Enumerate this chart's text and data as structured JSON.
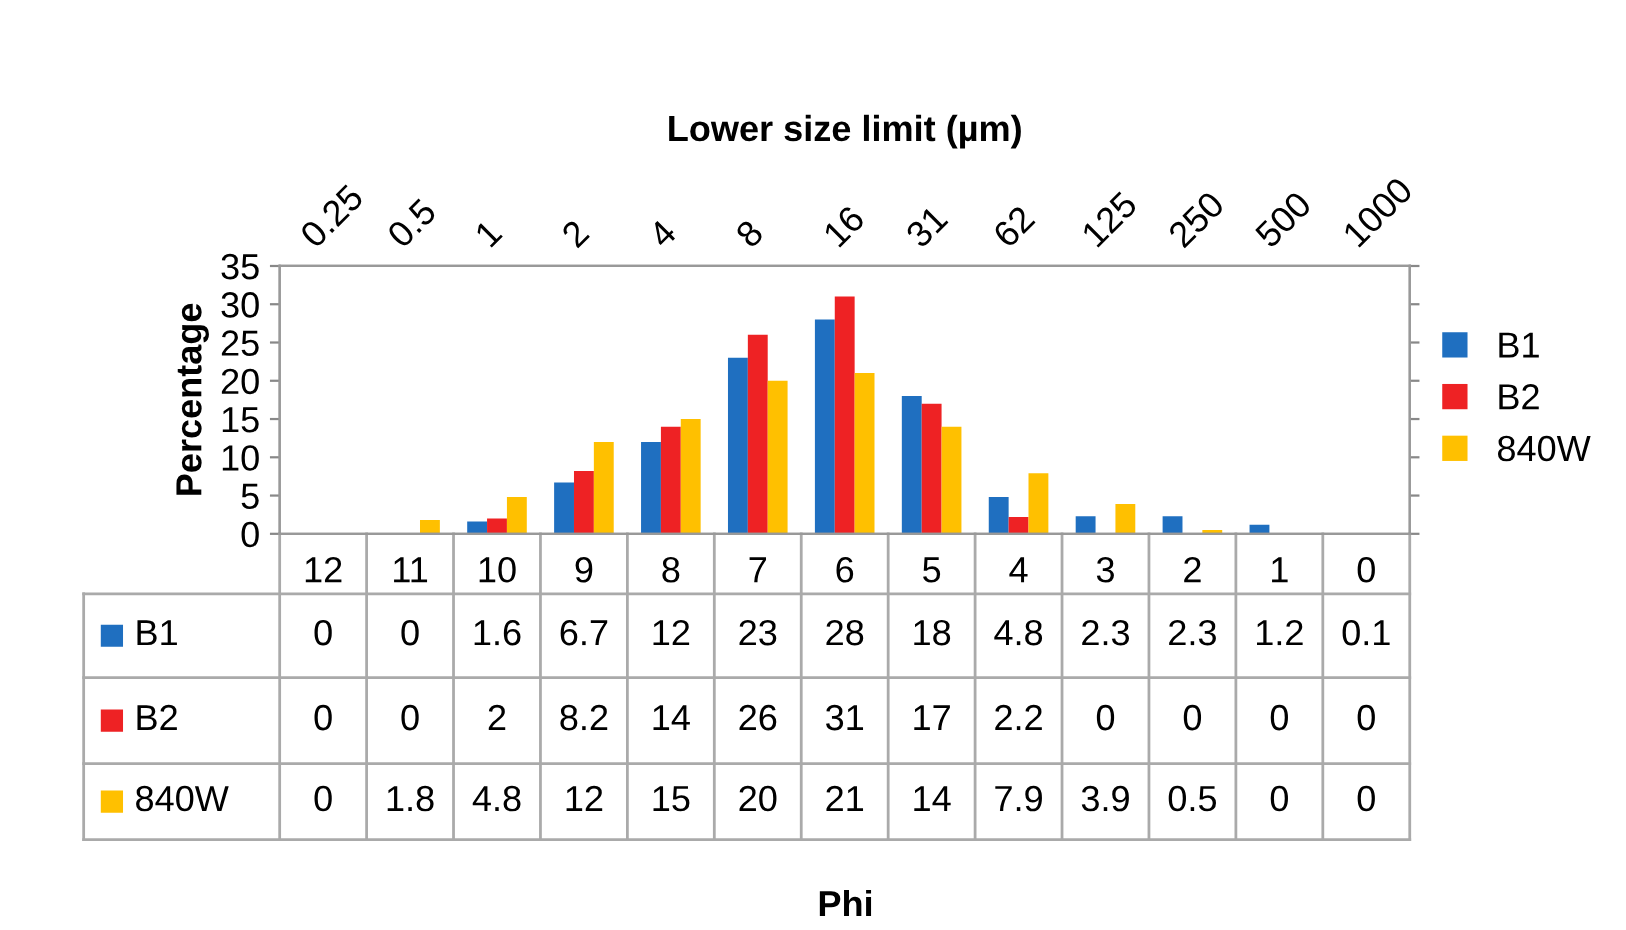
{
  "chart_data": {
    "type": "bar",
    "annotations": [
      "Phi"
    ],
    "ylabel": "Percentage",
    "x2label": "Lower size limit (µm)",
    "categories": [
      "12",
      "11",
      "10",
      "9",
      "8",
      "7",
      "6",
      "5",
      "4",
      "3",
      "2",
      "1",
      "0"
    ],
    "x2lim": [
      0.18,
      1450
    ],
    "log": "x2",
    "x2ticks": [
      0.25,
      0.5,
      1,
      2,
      4,
      8,
      16,
      31,
      62,
      125,
      250,
      500,
      1000
    ],
    "series": [
      {
        "name": "B1",
        "color": "#1f6fc0",
        "values": [
          0,
          0,
          1.6,
          6.7,
          12,
          23,
          28,
          18,
          4.8,
          2.3,
          2.3,
          1.2,
          0.1
        ]
      },
      {
        "name": "B2",
        "color": "#ee2224",
        "values": [
          0,
          0,
          2,
          8.2,
          14,
          26,
          31,
          17,
          2.2,
          0,
          0,
          0,
          0
        ]
      },
      {
        "name": "840W",
        "color": "#ffc000",
        "values": [
          0,
          1.8,
          4.8,
          12,
          15,
          20,
          21,
          14,
          7.9,
          3.9,
          0.5,
          0,
          0
        ]
      }
    ],
    "ylim": [
      0,
      35
    ],
    "yticks": [
      0,
      5,
      10,
      15,
      20,
      25,
      30,
      35
    ],
    "data_labels": true,
    "legend": "right"
  }
}
